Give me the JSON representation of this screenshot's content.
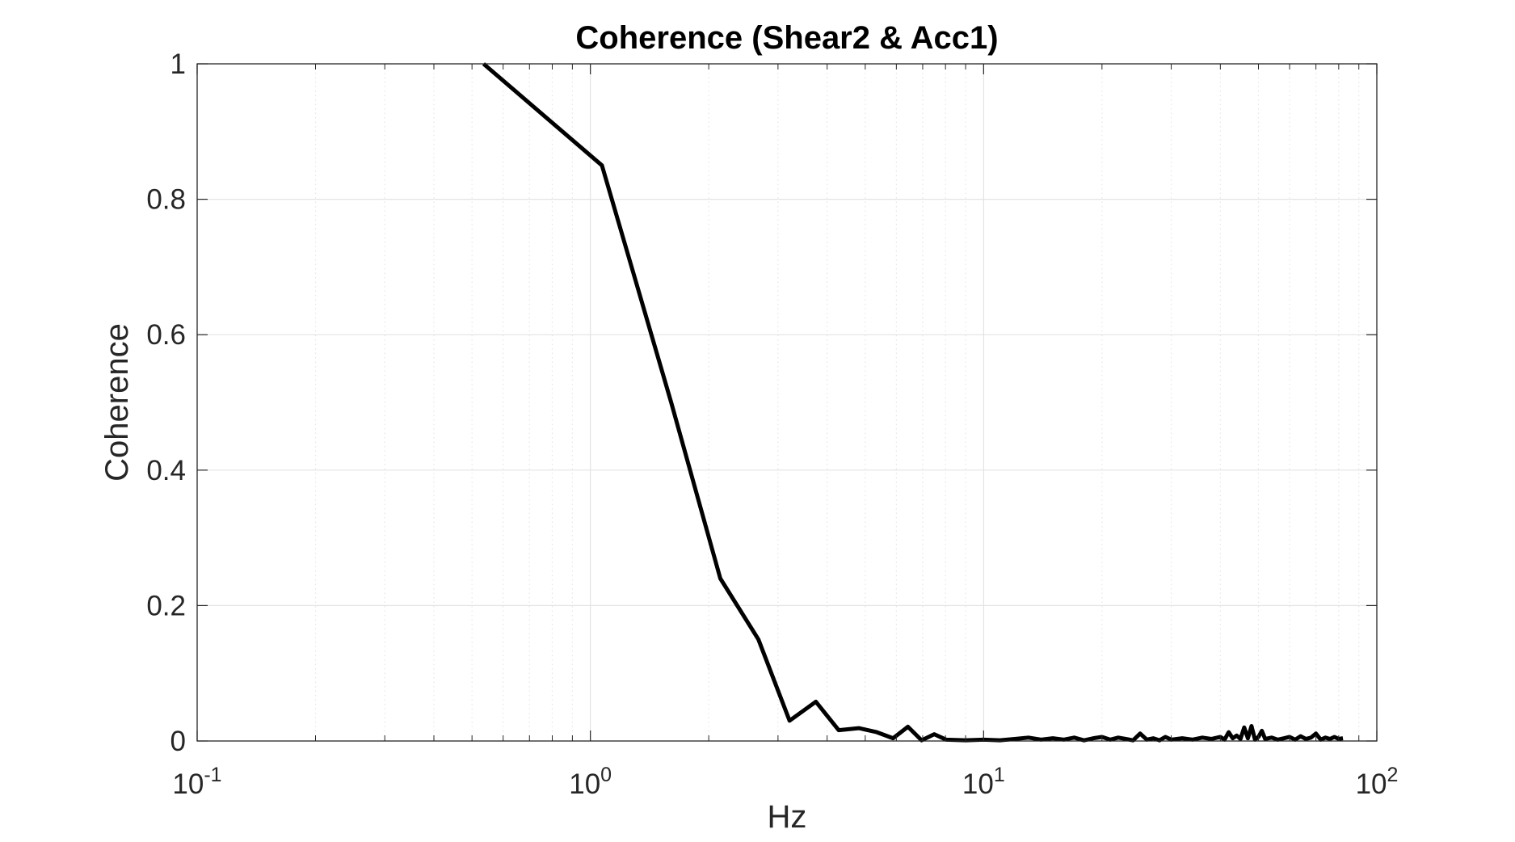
{
  "chart_data": {
    "type": "line",
    "title": "Coherence (Shear2 & Acc1)",
    "xlabel": "Hz",
    "ylabel": "Coherence",
    "xscale": "log",
    "xlim": [
      0.1,
      100
    ],
    "ylim": [
      0,
      1
    ],
    "grid": true,
    "legend": "none",
    "x_ticks": [
      {
        "base": "10",
        "exp": "-1",
        "value": 0.1
      },
      {
        "base": "10",
        "exp": "0",
        "value": 1
      },
      {
        "base": "10",
        "exp": "1",
        "value": 10
      },
      {
        "base": "10",
        "exp": "2",
        "value": 100
      }
    ],
    "y_ticks": [
      {
        "label": "0",
        "value": 0
      },
      {
        "label": "0.2",
        "value": 0.2
      },
      {
        "label": "0.4",
        "value": 0.4
      },
      {
        "label": "0.6",
        "value": 0.6
      },
      {
        "label": "0.8",
        "value": 0.8
      },
      {
        "label": "1",
        "value": 1
      }
    ],
    "series": [
      {
        "color": "#000000",
        "points": [
          [
            0.535,
            1.0
          ],
          [
            1.07,
            0.85
          ],
          [
            1.605,
            0.5
          ],
          [
            2.14,
            0.24
          ],
          [
            2.675,
            0.15
          ],
          [
            3.21,
            0.03
          ],
          [
            3.745,
            0.058
          ],
          [
            4.28,
            0.016
          ],
          [
            4.815,
            0.019
          ],
          [
            5.35,
            0.013
          ],
          [
            5.885,
            0.004
          ],
          [
            6.42,
            0.021
          ],
          [
            6.955,
            0.001
          ],
          [
            7.49,
            0.01
          ],
          [
            8.025,
            0.002
          ],
          [
            9.0,
            0.001
          ],
          [
            10.0,
            0.002
          ],
          [
            11.0,
            0.001
          ],
          [
            12.0,
            0.003
          ],
          [
            13.0,
            0.005
          ],
          [
            14.0,
            0.002
          ],
          [
            15.0,
            0.004
          ],
          [
            16.0,
            0.002
          ],
          [
            17.0,
            0.005
          ],
          [
            18.0,
            0.001
          ],
          [
            19.0,
            0.004
          ],
          [
            20.0,
            0.006
          ],
          [
            21.0,
            0.002
          ],
          [
            22.0,
            0.005
          ],
          [
            23.0,
            0.003
          ],
          [
            24.0,
            0.001
          ],
          [
            25.0,
            0.011
          ],
          [
            26.0,
            0.002
          ],
          [
            27.0,
            0.004
          ],
          [
            28.0,
            0.001
          ],
          [
            29.0,
            0.006
          ],
          [
            30.0,
            0.002
          ],
          [
            32.0,
            0.004
          ],
          [
            34.0,
            0.002
          ],
          [
            36.0,
            0.005
          ],
          [
            38.0,
            0.003
          ],
          [
            40.0,
            0.006
          ],
          [
            41.0,
            0.002
          ],
          [
            42.0,
            0.013
          ],
          [
            43.0,
            0.004
          ],
          [
            44.0,
            0.008
          ],
          [
            45.0,
            0.003
          ],
          [
            46.0,
            0.02
          ],
          [
            47.0,
            0.004
          ],
          [
            48.0,
            0.022
          ],
          [
            49.0,
            0.002
          ],
          [
            50.0,
            0.006
          ],
          [
            51.0,
            0.015
          ],
          [
            52.0,
            0.003
          ],
          [
            54.0,
            0.005
          ],
          [
            56.0,
            0.002
          ],
          [
            58.0,
            0.004
          ],
          [
            60.0,
            0.006
          ],
          [
            62.0,
            0.002
          ],
          [
            64.0,
            0.007
          ],
          [
            66.0,
            0.003
          ],
          [
            68.0,
            0.005
          ],
          [
            70.0,
            0.011
          ],
          [
            72.0,
            0.002
          ],
          [
            74.0,
            0.005
          ],
          [
            76.0,
            0.003
          ],
          [
            78.0,
            0.006
          ],
          [
            80.0,
            0.003
          ],
          [
            82.0,
            0.004
          ]
        ]
      }
    ]
  }
}
